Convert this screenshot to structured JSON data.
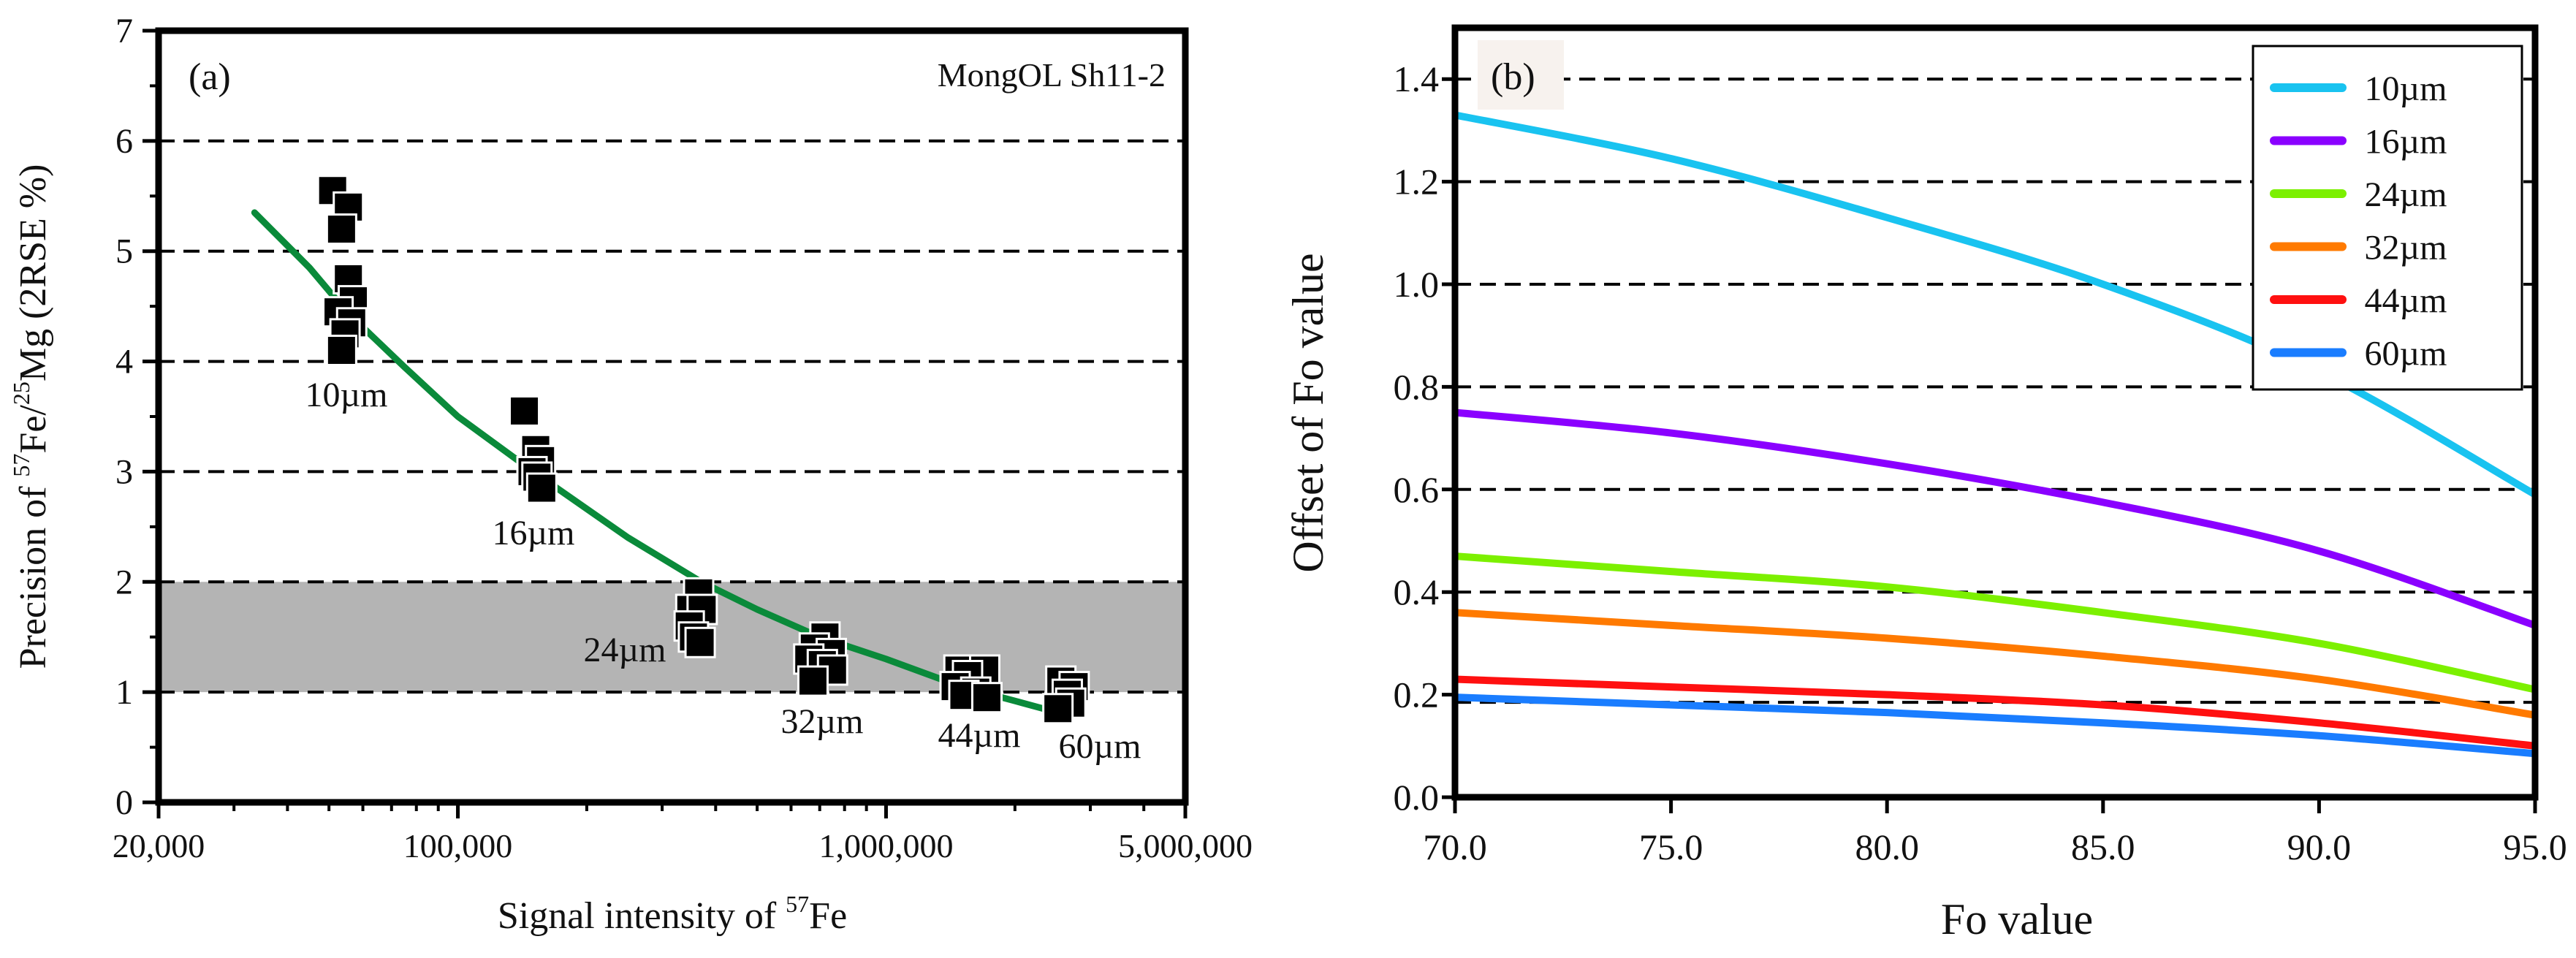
{
  "chart_data": [
    {
      "type": "scatter",
      "panel_label": "(a)",
      "annotation": "MongOL Sh11-2",
      "xlabel": "Signal intensity of ",
      "xlabel_sup": "57",
      "xlabel_end": "Fe",
      "ylabel_parts": {
        "a": "Precision of ",
        "sup1": "57",
        "b": "Fe/",
        "sup2": "25",
        "c": "Mg (2RSE %)"
      },
      "xscale": "log",
      "xlim": [
        20000,
        5000000
      ],
      "ylim": [
        0,
        7
      ],
      "xticks": [
        {
          "value": 20000,
          "label": "20,000"
        },
        {
          "value": 100000,
          "label": "100,000"
        },
        {
          "value": 1000000,
          "label": "1,000,000"
        },
        {
          "value": 5000000,
          "label": "5,000,000"
        }
      ],
      "yticks": [
        0,
        1,
        2,
        3,
        4,
        5,
        6,
        7
      ],
      "gridlines_y": [
        1,
        2,
        3,
        4,
        5,
        6
      ],
      "shaded_band": {
        "from": 1,
        "to": 2,
        "color": "#b4b4b4"
      },
      "fit_color": "#0a8a3a",
      "fit_curve": [
        [
          33500,
          5.35
        ],
        [
          45000,
          4.85
        ],
        [
          55000,
          4.45
        ],
        [
          75000,
          3.95
        ],
        [
          100000,
          3.5
        ],
        [
          150000,
          3.0
        ],
        [
          250000,
          2.4
        ],
        [
          370000,
          2.0
        ],
        [
          500000,
          1.75
        ],
        [
          700000,
          1.5
        ],
        [
          1000000,
          1.3
        ],
        [
          1500000,
          1.05
        ],
        [
          2000000,
          0.92
        ],
        [
          2600000,
          0.8
        ]
      ],
      "groups": [
        {
          "label": "10µm",
          "points": [
            [
              51000,
              5.55
            ],
            [
              55500,
              5.4
            ],
            [
              53500,
              5.2
            ],
            [
              55500,
              4.75
            ],
            [
              57000,
              4.55
            ],
            [
              52500,
              4.45
            ],
            [
              56500,
              4.35
            ],
            [
              54500,
              4.25
            ],
            [
              53500,
              4.1
            ]
          ]
        },
        {
          "label": "16µm",
          "points": [
            [
              143000,
              3.55
            ],
            [
              152000,
              3.2
            ],
            [
              156000,
              3.1
            ],
            [
              149000,
              3.0
            ],
            [
              153000,
              2.95
            ],
            [
              157000,
              2.85
            ]
          ]
        },
        {
          "label": "24µm",
          "points": [
            [
              365000,
              1.9
            ],
            [
              350000,
              1.75
            ],
            [
              372000,
              1.75
            ],
            [
              347000,
              1.6
            ],
            [
              355000,
              1.5
            ],
            [
              368000,
              1.45
            ]
          ]
        },
        {
          "label": "32µm",
          "points": [
            [
              720000,
              1.5
            ],
            [
              680000,
              1.4
            ],
            [
              745000,
              1.35
            ],
            [
              660000,
              1.3
            ],
            [
              710000,
              1.25
            ],
            [
              750000,
              1.2
            ],
            [
              675000,
              1.1
            ]
          ]
        },
        {
          "label": "44µm",
          "points": [
            [
              1480000,
              1.2
            ],
            [
              1700000,
              1.2
            ],
            [
              1550000,
              1.15
            ],
            [
              1450000,
              1.05
            ],
            [
              1620000,
              1.0
            ],
            [
              1520000,
              0.97
            ],
            [
              1720000,
              0.95
            ]
          ]
        },
        {
          "label": "60µm",
          "points": [
            [
              2560000,
              1.1
            ],
            [
              2750000,
              1.05
            ],
            [
              2650000,
              0.98
            ],
            [
              2700000,
              0.9
            ],
            [
              2520000,
              0.85
            ]
          ]
        }
      ]
    },
    {
      "type": "line",
      "panel_label": "(b)",
      "xlabel": "Fo value",
      "ylabel": "Offset of Fo value",
      "xlim": [
        70,
        95
      ],
      "ylim": [
        0,
        1.5
      ],
      "xticks": [
        {
          "value": 70,
          "label": "70.0"
        },
        {
          "value": 75,
          "label": "75.0"
        },
        {
          "value": 80,
          "label": "80.0"
        },
        {
          "value": 85,
          "label": "85.0"
        },
        {
          "value": 90,
          "label": "90.0"
        },
        {
          "value": 95,
          "label": "95.0"
        }
      ],
      "yticks": [
        {
          "value": 0,
          "label": "0.0"
        },
        {
          "value": 0.2,
          "label": "0.2"
        },
        {
          "value": 0.4,
          "label": "0.4"
        },
        {
          "value": 0.6,
          "label": "0.6"
        },
        {
          "value": 0.8,
          "label": "0.8"
        },
        {
          "value": 1.0,
          "label": "1.0"
        },
        {
          "value": 1.2,
          "label": "1.2"
        },
        {
          "value": 1.4,
          "label": "1.4"
        }
      ],
      "gridlines_y": [
        0.185,
        0.4,
        0.6,
        0.8,
        1.0,
        1.2,
        1.4
      ],
      "legend_position": "top-right",
      "x": [
        70,
        75,
        80,
        85,
        90,
        95
      ],
      "series": [
        {
          "name": "10µm",
          "color": "#19c3f0",
          "values": [
            1.33,
            1.245,
            1.13,
            1.0,
            0.83,
            0.59
          ]
        },
        {
          "name": "16µm",
          "color": "#8a00ff",
          "values": [
            0.75,
            0.71,
            0.65,
            0.575,
            0.48,
            0.335
          ]
        },
        {
          "name": "24µm",
          "color": "#7cf000",
          "values": [
            0.47,
            0.44,
            0.41,
            0.36,
            0.3,
            0.21
          ]
        },
        {
          "name": "32µm",
          "color": "#ff7a00",
          "values": [
            0.36,
            0.335,
            0.31,
            0.275,
            0.23,
            0.16
          ]
        },
        {
          "name": "44µm",
          "color": "#ff1010",
          "values": [
            0.23,
            0.215,
            0.2,
            0.18,
            0.145,
            0.1
          ]
        },
        {
          "name": "60µm",
          "color": "#1a7dff",
          "values": [
            0.195,
            0.18,
            0.165,
            0.145,
            0.12,
            0.085
          ]
        }
      ]
    }
  ]
}
